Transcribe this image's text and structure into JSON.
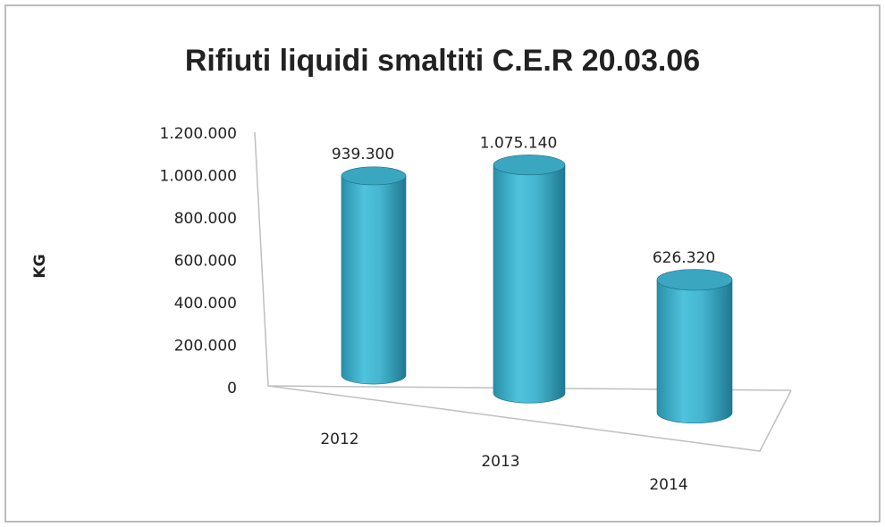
{
  "chart_data": {
    "type": "bar",
    "title": "Rifiuti liquidi smaltiti  C.E.R  20.03.06",
    "y_label": "KG",
    "categories": [
      "2012",
      "2013",
      "2014"
    ],
    "values": [
      939300,
      1075140,
      626320
    ],
    "value_labels": [
      "939.300",
      "1.075.140",
      "626.320"
    ],
    "color": "#4fc3dd",
    "ylim": [
      0,
      1200000
    ],
    "yticks": [
      0,
      {
        "value": 200000,
        "label": "200.000"
      },
      {
        "value": 400000,
        "label": "400.000"
      },
      {
        "value": 600000,
        "label": "600.000"
      },
      {
        "value": 800000,
        "label": "800.000"
      },
      {
        "value": 1000000,
        "label": "1.000.000"
      },
      {
        "value": 1200000,
        "label": "1.200.000"
      }
    ]
  }
}
